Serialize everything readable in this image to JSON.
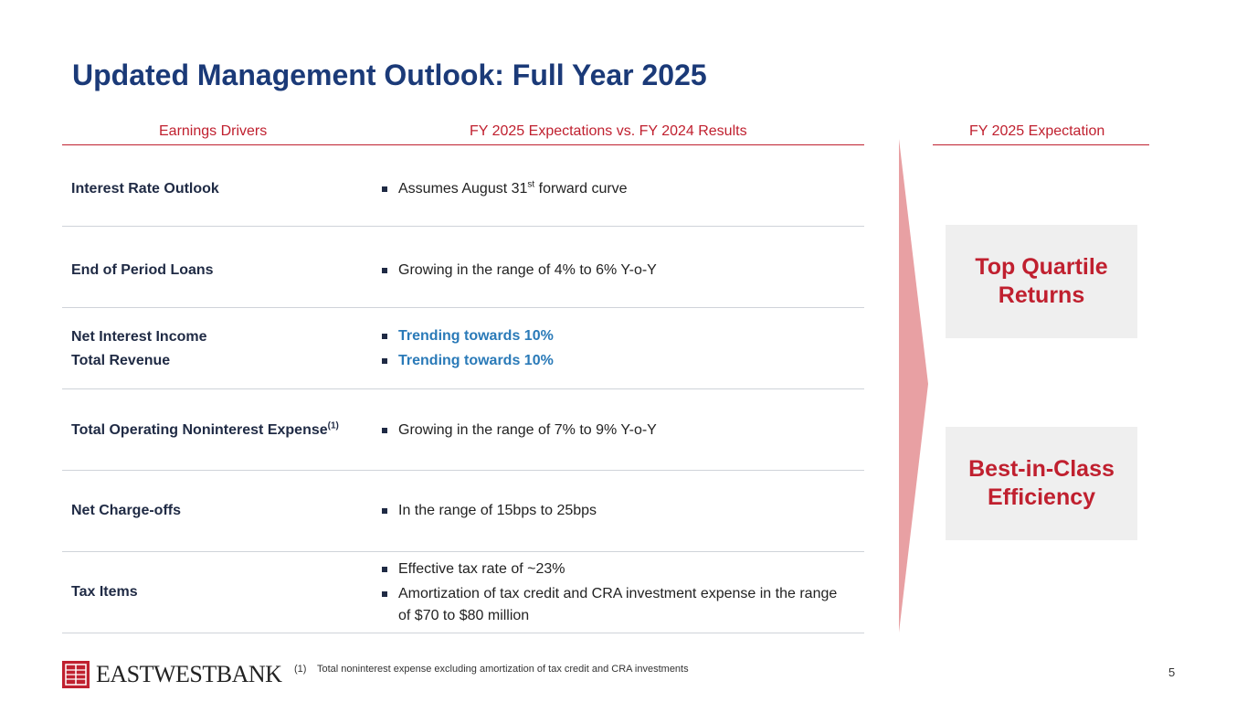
{
  "page": {
    "title": "Updated Management Outlook: Full Year 2025",
    "page_number": "5"
  },
  "headers": {
    "drivers": "Earnings Drivers",
    "expectations": "FY 2025 Expectations vs. FY 2024 Results",
    "fy_expectation": "FY 2025 Expectation"
  },
  "rows": [
    {
      "label": "Interest Rate Outlook",
      "bullets": [
        {
          "pre": "Assumes August 31",
          "sup": "st",
          "post": " forward curve"
        }
      ]
    },
    {
      "label": "End of Period Loans",
      "bullets": [
        {
          "text": "Growing in the range of 4% to 6% Y-o-Y"
        }
      ]
    },
    {
      "label_lines": [
        "Net Interest Income",
        "Total Revenue"
      ],
      "bullets": [
        {
          "text": "Trending towards 10%"
        },
        {
          "text": "Trending towards 10%"
        }
      ]
    },
    {
      "label": "Total Operating Noninterest Expense",
      "label_sup": "(1)",
      "bullets": [
        {
          "text": "Growing in the range of 7% to 9% Y-o-Y"
        }
      ]
    },
    {
      "label": "Net Charge-offs",
      "bullets": [
        {
          "text": "In the range of 15bps to 25bps"
        }
      ]
    },
    {
      "label": "Tax Items",
      "bullets": [
        {
          "text": "Effective tax rate of ~23%"
        },
        {
          "text": "Amortization of tax credit and CRA investment expense in the range of $70 to $80 million"
        }
      ]
    }
  ],
  "outcomes": [
    {
      "line1": "Top Quartile",
      "line2": "Returns"
    },
    {
      "line1": "Best-in-Class",
      "line2": "Efficiency"
    }
  ],
  "footnote": {
    "number": "(1)",
    "text": "Total noninterest expense excluding amortization of tax credit and CRA investments"
  },
  "logo": {
    "text": "EASTWESTBANK"
  },
  "colors": {
    "title": "#1b3a78",
    "accent_red": "#c0202f",
    "highlight_blue": "#2a7ab8",
    "arrow_fill": "#e8a0a3",
    "box_bg": "#efefef"
  },
  "icons": [
    "bullet-square-icon",
    "chevron-arrow-icon",
    "east-west-bank-logo-icon"
  ]
}
